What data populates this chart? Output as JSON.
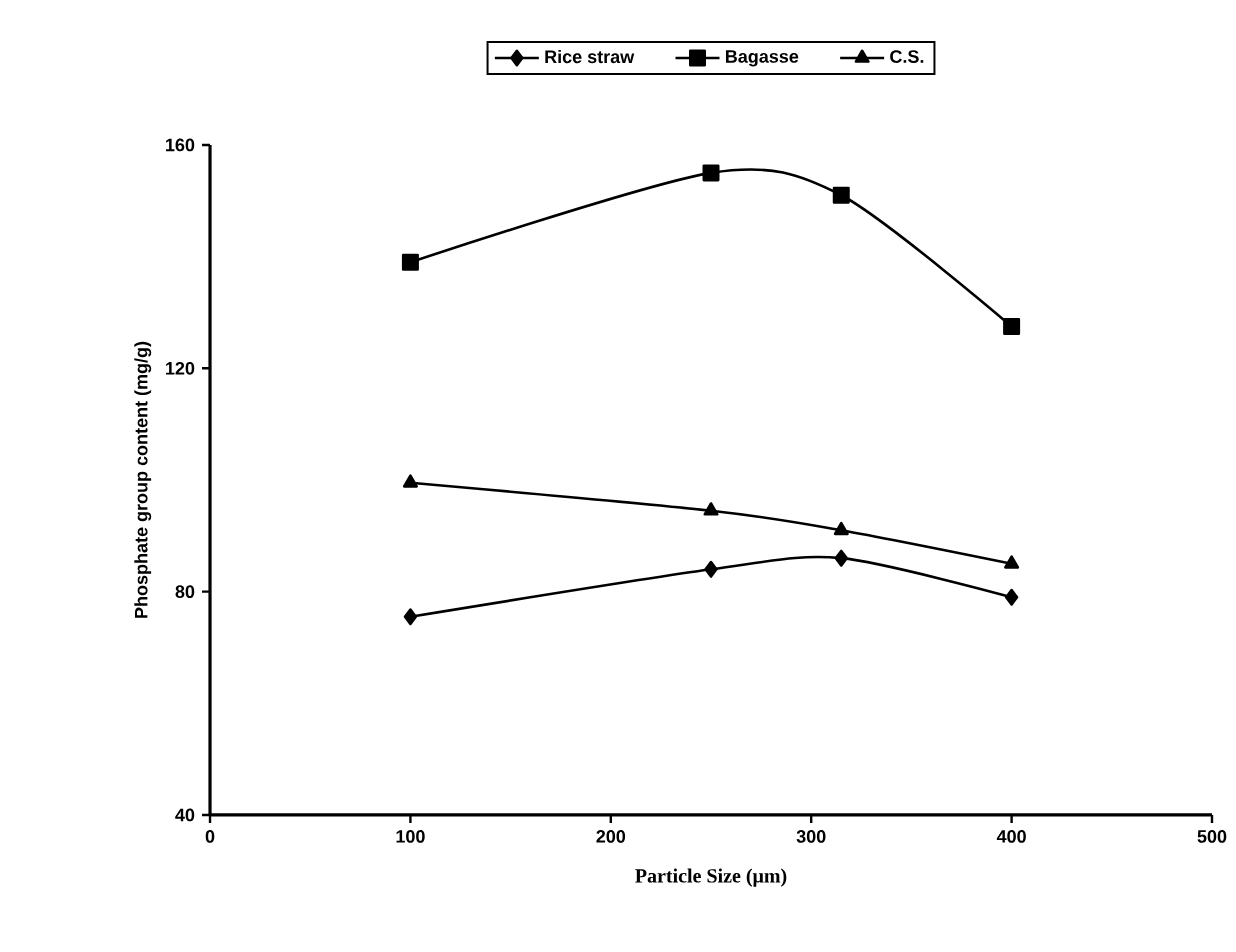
{
  "chart_data": {
    "type": "line",
    "xlabel": "Particle Size  (μm)",
    "ylabel": "Phosphate group content (mg/g)",
    "xlim": [
      0,
      500
    ],
    "xticks": [
      0,
      100,
      200,
      300,
      400,
      500
    ],
    "ylim": [
      40,
      160
    ],
    "yticks": [
      40,
      80,
      120,
      160
    ],
    "grid": false,
    "legend": "top",
    "line_style": "solid",
    "series": [
      {
        "name": "Rice straw",
        "color": "#000000",
        "marker": "diamond",
        "x": [
          100,
          250,
          315,
          400
        ],
        "values": [
          75.5,
          84,
          86,
          79
        ]
      },
      {
        "name": "Bagasse",
        "color": "#000000",
        "marker": "square",
        "x": [
          100,
          250,
          315,
          400
        ],
        "values": [
          139,
          155,
          151,
          127.5
        ]
      },
      {
        "name": "C.S.",
        "color": "#000000",
        "marker": "triangle",
        "x": [
          100,
          250,
          315,
          400
        ],
        "values": [
          99.5,
          94.5,
          91,
          85
        ]
      }
    ]
  }
}
